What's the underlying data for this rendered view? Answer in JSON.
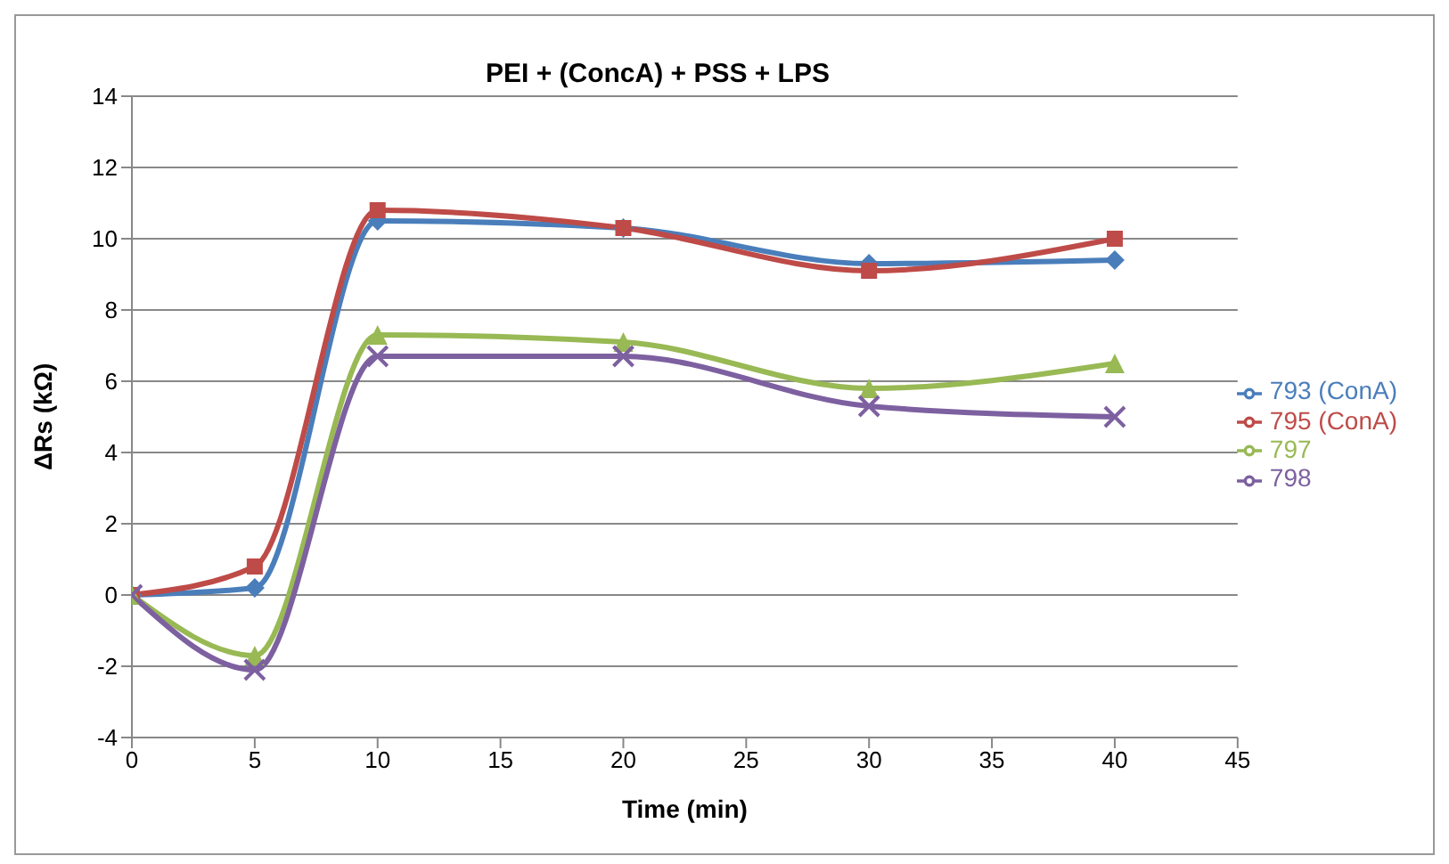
{
  "chart_data": {
    "type": "line",
    "title": "PEI + (ConcA) + PSS + LPS",
    "xlabel": "Time (min)",
    "ylabel": "ΔRs (kΩ)",
    "x": [
      0,
      5,
      10,
      20,
      30,
      40
    ],
    "series": [
      {
        "name": "793 (ConA)",
        "color": "#4a7ebb",
        "marker": "diamond",
        "values": [
          0,
          0.2,
          10.5,
          10.3,
          9.3,
          9.4
        ]
      },
      {
        "name": "795 (ConA)",
        "color": "#be4b48",
        "marker": "square",
        "values": [
          0,
          0.8,
          10.8,
          10.3,
          9.1,
          10.0
        ]
      },
      {
        "name": "797",
        "color": "#98b954",
        "marker": "triangle",
        "values": [
          0,
          -1.7,
          7.3,
          7.1,
          5.8,
          6.5
        ]
      },
      {
        "name": "798",
        "color": "#7d60a0",
        "marker": "cross",
        "values": [
          0,
          -2.1,
          6.7,
          6.7,
          5.3,
          5.0
        ]
      }
    ],
    "xlim": [
      0,
      45
    ],
    "xticks": [
      0,
      5,
      10,
      15,
      20,
      25,
      30,
      35,
      40,
      45
    ],
    "ylim": [
      -4,
      14
    ],
    "yticks": [
      -4,
      -2,
      0,
      2,
      4,
      6,
      8,
      10,
      12,
      14
    ],
    "grid": "y",
    "legend": "right"
  }
}
